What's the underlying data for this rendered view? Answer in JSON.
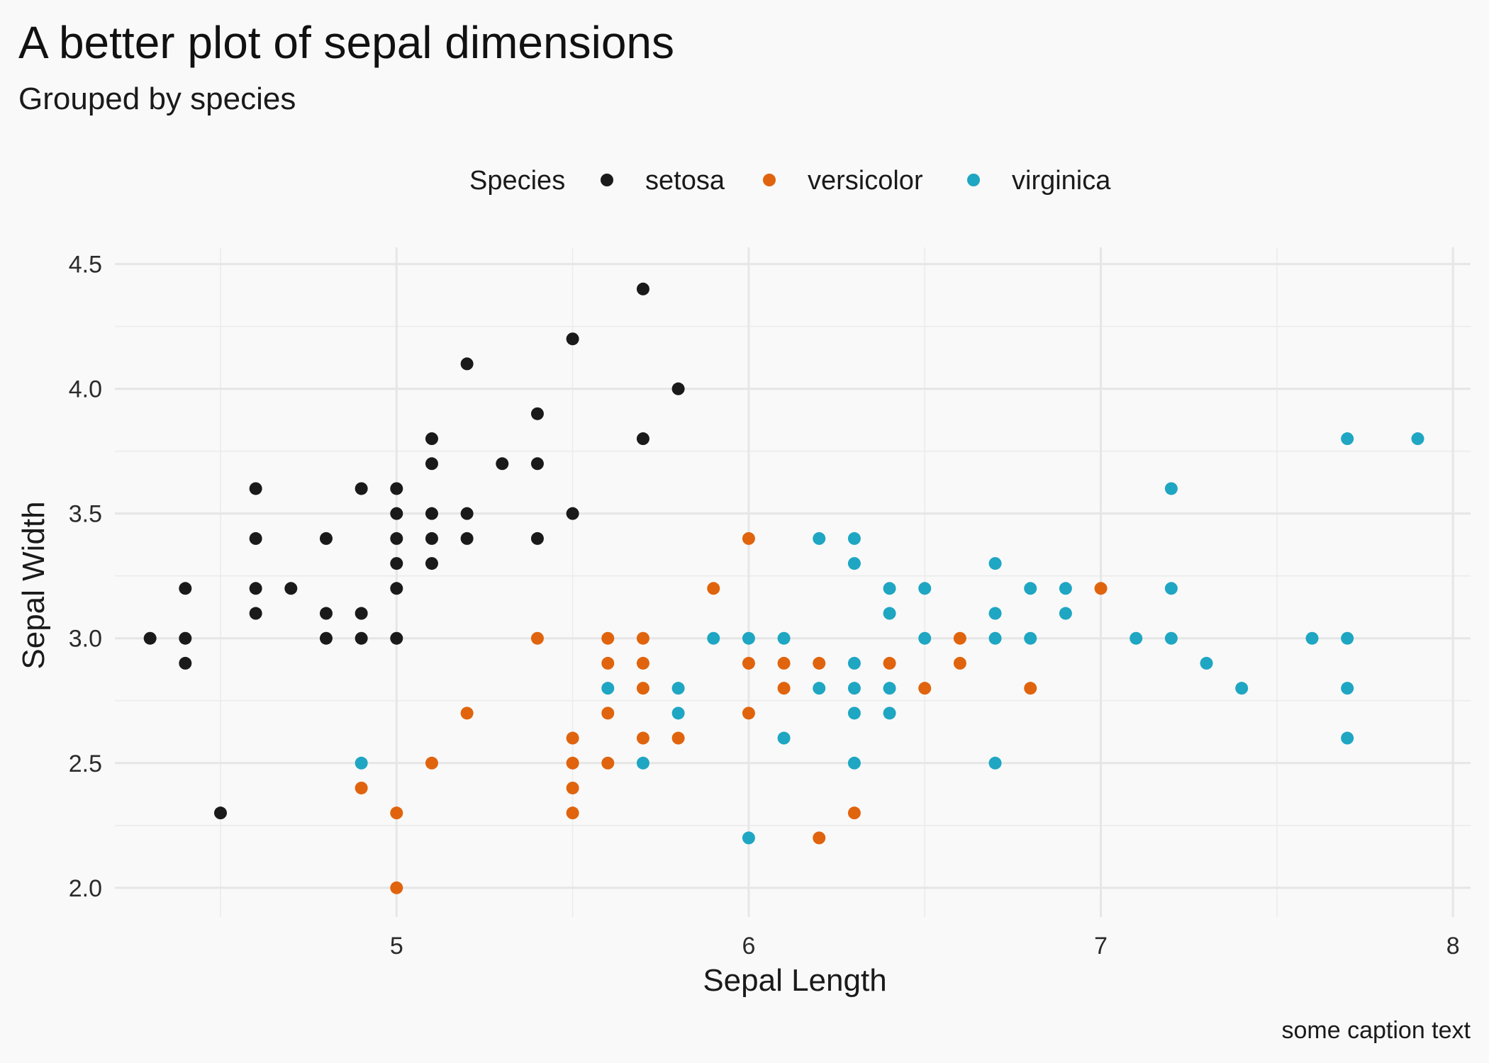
{
  "title": "A better plot of sepal dimensions",
  "subtitle": "Grouped by species",
  "caption": "some caption text",
  "legend": {
    "title": "Species",
    "items": [
      {
        "label": "setosa",
        "color": "#1a1a1a"
      },
      {
        "label": "versicolor",
        "color": "#e0640d"
      },
      {
        "label": "virginica",
        "color": "#1fa6c2"
      }
    ]
  },
  "chart_data": {
    "type": "scatter",
    "title": "A better plot of sepal dimensions",
    "subtitle": "Grouped by species",
    "xlabel": "Sepal Length",
    "ylabel": "Sepal Width",
    "xlim": [
      4.2,
      8.05
    ],
    "ylim": [
      1.9,
      4.55
    ],
    "xticks": [
      5,
      6,
      7,
      8
    ],
    "xtick_labels": [
      "5",
      "6",
      "7",
      "8"
    ],
    "yticks": [
      2.0,
      2.5,
      3.0,
      3.5,
      4.0,
      4.5
    ],
    "ytick_labels": [
      "2.0",
      "2.5",
      "3.0",
      "3.5",
      "4.0",
      "4.5"
    ],
    "grid": true,
    "legend_position": "top",
    "series": [
      {
        "name": "setosa",
        "color": "#1a1a1a",
        "points": [
          [
            4.3,
            3.0
          ],
          [
            4.4,
            3.2
          ],
          [
            4.4,
            3.0
          ],
          [
            4.4,
            2.9
          ],
          [
            4.5,
            2.3
          ],
          [
            4.6,
            3.6
          ],
          [
            4.6,
            3.4
          ],
          [
            4.6,
            3.2
          ],
          [
            4.6,
            3.1
          ],
          [
            4.7,
            3.2
          ],
          [
            4.8,
            3.4
          ],
          [
            4.8,
            3.1
          ],
          [
            4.8,
            3.0
          ],
          [
            4.9,
            3.6
          ],
          [
            4.9,
            3.1
          ],
          [
            4.9,
            3.0
          ],
          [
            5.0,
            3.6
          ],
          [
            5.0,
            3.5
          ],
          [
            5.0,
            3.4
          ],
          [
            5.0,
            3.3
          ],
          [
            5.0,
            3.2
          ],
          [
            5.0,
            3.0
          ],
          [
            5.1,
            3.8
          ],
          [
            5.1,
            3.7
          ],
          [
            5.1,
            3.5
          ],
          [
            5.1,
            3.4
          ],
          [
            5.1,
            3.3
          ],
          [
            5.2,
            4.1
          ],
          [
            5.2,
            3.5
          ],
          [
            5.2,
            3.4
          ],
          [
            5.3,
            3.7
          ],
          [
            5.4,
            3.9
          ],
          [
            5.4,
            3.7
          ],
          [
            5.4,
            3.4
          ],
          [
            5.5,
            4.2
          ],
          [
            5.5,
            3.5
          ],
          [
            5.7,
            4.4
          ],
          [
            5.7,
            3.8
          ],
          [
            5.8,
            4.0
          ]
        ]
      },
      {
        "name": "versicolor",
        "color": "#e0640d",
        "points": [
          [
            4.9,
            2.4
          ],
          [
            5.0,
            2.3
          ],
          [
            5.0,
            2.0
          ],
          [
            5.1,
            2.5
          ],
          [
            5.2,
            2.7
          ],
          [
            5.4,
            3.0
          ],
          [
            5.5,
            2.6
          ],
          [
            5.5,
            2.5
          ],
          [
            5.5,
            2.4
          ],
          [
            5.5,
            2.3
          ],
          [
            5.6,
            3.0
          ],
          [
            5.6,
            2.9
          ],
          [
            5.6,
            2.7
          ],
          [
            5.6,
            2.5
          ],
          [
            5.7,
            3.0
          ],
          [
            5.7,
            2.9
          ],
          [
            5.7,
            2.8
          ],
          [
            5.7,
            2.6
          ],
          [
            5.8,
            2.6
          ],
          [
            5.9,
            3.2
          ],
          [
            6.0,
            3.4
          ],
          [
            6.0,
            2.9
          ],
          [
            6.0,
            2.7
          ],
          [
            6.1,
            2.9
          ],
          [
            6.1,
            2.8
          ],
          [
            6.2,
            2.9
          ],
          [
            6.2,
            2.2
          ],
          [
            6.3,
            2.3
          ],
          [
            6.4,
            2.9
          ],
          [
            6.5,
            2.8
          ],
          [
            6.6,
            3.0
          ],
          [
            6.6,
            2.9
          ],
          [
            6.8,
            2.8
          ],
          [
            7.0,
            3.2
          ]
        ]
      },
      {
        "name": "virginica",
        "color": "#1fa6c2",
        "points": [
          [
            4.9,
            2.5
          ],
          [
            5.6,
            2.8
          ],
          [
            5.7,
            2.5
          ],
          [
            5.8,
            2.8
          ],
          [
            5.8,
            2.7
          ],
          [
            5.9,
            3.0
          ],
          [
            6.0,
            3.0
          ],
          [
            6.0,
            2.2
          ],
          [
            6.1,
            3.0
          ],
          [
            6.1,
            2.6
          ],
          [
            6.2,
            3.4
          ],
          [
            6.2,
            2.8
          ],
          [
            6.3,
            3.4
          ],
          [
            6.3,
            3.3
          ],
          [
            6.3,
            2.9
          ],
          [
            6.3,
            2.8
          ],
          [
            6.3,
            2.7
          ],
          [
            6.3,
            2.5
          ],
          [
            6.4,
            3.2
          ],
          [
            6.4,
            3.1
          ],
          [
            6.4,
            2.8
          ],
          [
            6.4,
            2.7
          ],
          [
            6.5,
            3.2
          ],
          [
            6.5,
            3.0
          ],
          [
            6.7,
            3.3
          ],
          [
            6.7,
            3.1
          ],
          [
            6.7,
            3.0
          ],
          [
            6.7,
            2.5
          ],
          [
            6.8,
            3.2
          ],
          [
            6.8,
            3.0
          ],
          [
            6.9,
            3.2
          ],
          [
            6.9,
            3.1
          ],
          [
            7.1,
            3.0
          ],
          [
            7.2,
            3.6
          ],
          [
            7.2,
            3.2
          ],
          [
            7.2,
            3.0
          ],
          [
            7.3,
            2.9
          ],
          [
            7.4,
            2.8
          ],
          [
            7.6,
            3.0
          ],
          [
            7.7,
            3.8
          ],
          [
            7.7,
            3.0
          ],
          [
            7.7,
            2.8
          ],
          [
            7.7,
            2.6
          ],
          [
            7.9,
            3.8
          ]
        ]
      }
    ]
  }
}
